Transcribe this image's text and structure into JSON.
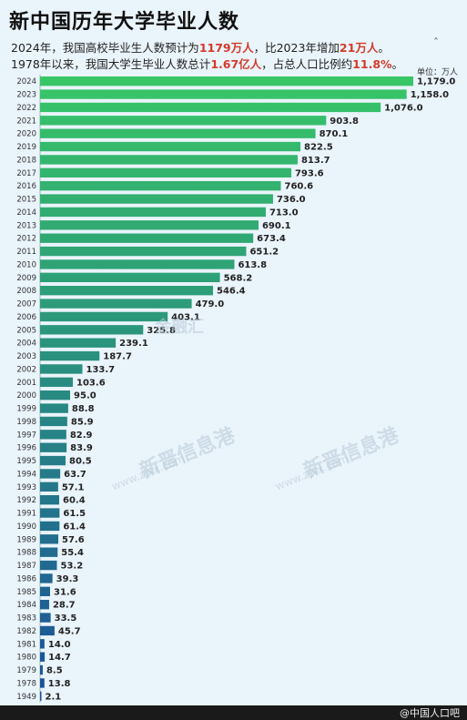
{
  "title": "新中国历年大学毕业人数",
  "subtitle1": {
    "p1": "2024年，我国高校毕业生人数预计为",
    "h1": "1179万人",
    "p2": "，比2023年增加",
    "h2": "21万人",
    "p3": "。"
  },
  "subtitle2": {
    "p1": "1978年以来，我国大学生毕业人数总计",
    "h1": "1.67亿人",
    "p2": "，占总人口比例约",
    "h2": "11.8%",
    "p3": "。"
  },
  "unit_label": "单位：万人",
  "watermarks": {
    "center": "新晋信息港",
    "center_url": "www.zjxx.com",
    "right": "新晋信息港",
    "right_url": "www.zjxx.com",
    "mid": "金融汇"
  },
  "footer": "@中国人口吧",
  "colors": {
    "bar_top": "#38c766",
    "bar_bottom": "#1a4f9c",
    "highlight": "#d43a2a"
  },
  "chart_data": {
    "type": "bar",
    "orientation": "horizontal",
    "categories": [
      "2024",
      "2023",
      "2022",
      "2021",
      "2020",
      "2019",
      "2018",
      "2017",
      "2016",
      "2015",
      "2014",
      "2013",
      "2012",
      "2011",
      "2010",
      "2009",
      "2008",
      "2007",
      "2006",
      "2005",
      "2004",
      "2003",
      "2002",
      "2001",
      "2000",
      "1999",
      "1998",
      "1997",
      "1996",
      "1995",
      "1994",
      "1993",
      "1992",
      "1991",
      "1990",
      "1989",
      "1988",
      "1987",
      "1986",
      "1985",
      "1984",
      "1983",
      "1982",
      "1981",
      "1980",
      "1979",
      "1978",
      "1949"
    ],
    "values": [
      1179.0,
      1158.0,
      1076.0,
      903.8,
      870.1,
      822.5,
      813.7,
      793.6,
      760.6,
      736.0,
      713.0,
      690.1,
      673.4,
      651.2,
      613.8,
      568.2,
      546.4,
      479.0,
      403.1,
      325.8,
      239.1,
      187.7,
      133.7,
      103.6,
      95.0,
      88.8,
      85.9,
      82.9,
      83.9,
      80.5,
      63.7,
      57.1,
      60.4,
      61.5,
      61.4,
      57.6,
      55.4,
      53.2,
      39.3,
      31.6,
      28.7,
      33.5,
      45.7,
      14.0,
      14.7,
      8.5,
      13.8,
      2.1
    ],
    "labels": [
      "1,179.0",
      "1,158.0",
      "1,076.0",
      "903.8",
      "870.1",
      "822.5",
      "813.7",
      "793.6",
      "760.6",
      "736.0",
      "713.0",
      "690.1",
      "673.4",
      "651.2",
      "613.8",
      "568.2",
      "546.4",
      "479.0",
      "403.1",
      "325.8",
      "239.1",
      "187.7",
      "133.7",
      "103.6",
      "95.0",
      "88.8",
      "85.9",
      "82.9",
      "83.9",
      "80.5",
      "63.7",
      "57.1",
      "60.4",
      "61.5",
      "61.4",
      "57.6",
      "55.4",
      "53.2",
      "39.3",
      "31.6",
      "28.7",
      "33.5",
      "45.7",
      "14.0",
      "14.7",
      "8.5",
      "13.8",
      "2.1"
    ],
    "xlim": [
      0,
      1179
    ]
  }
}
